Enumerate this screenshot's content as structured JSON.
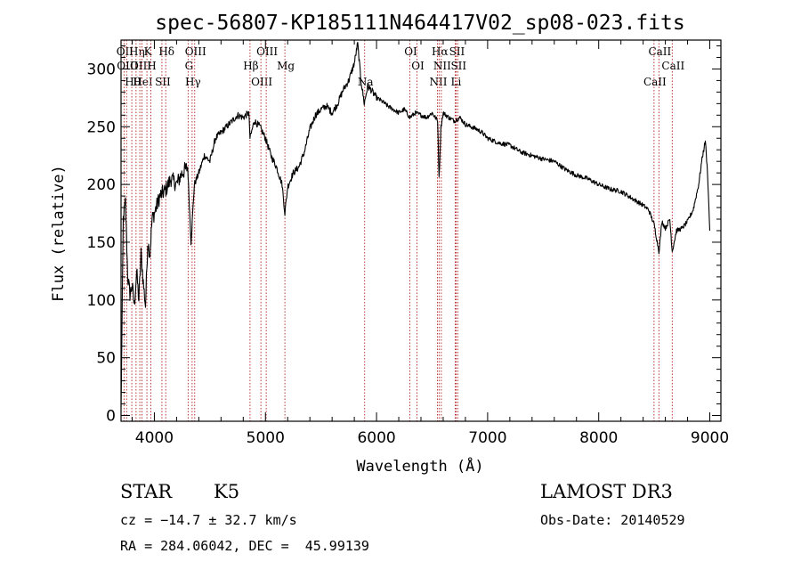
{
  "chart_data": {
    "type": "line",
    "title": "spec-56807-KP185111N464417V02_sp08-023.fits",
    "xlabel": "Wavelength (Å)",
    "ylabel": "Flux (relative)",
    "xlim": [
      3700,
      9100
    ],
    "ylim": [
      -5,
      325
    ],
    "xticks": [
      4000,
      5000,
      6000,
      7000,
      8000,
      9000
    ],
    "yticks": [
      0,
      50,
      100,
      150,
      200,
      250,
      300
    ],
    "grid": false,
    "line_color": "#000000",
    "marker_color": "#b22222",
    "series": [
      {
        "values_x": [
          3700,
          3720,
          3740,
          3760,
          3780,
          3800,
          3820,
          3840,
          3860,
          3880,
          3900,
          3920,
          3940,
          3960,
          3980,
          4000,
          4050,
          4100,
          4150,
          4200,
          4250,
          4300,
          4330,
          4360,
          4400,
          4450,
          4500,
          4550,
          4600,
          4650,
          4700,
          4750,
          4800,
          4850,
          4861,
          4900,
          4950,
          5000,
          5050,
          5100,
          5150,
          5175,
          5200,
          5250,
          5300,
          5350,
          5400,
          5450,
          5500,
          5550,
          5600,
          5650,
          5700,
          5750,
          5800,
          5830,
          5860,
          5890,
          5920,
          5950,
          6000,
          6050,
          6100,
          6150,
          6200,
          6250,
          6300,
          6350,
          6400,
          6450,
          6500,
          6550,
          6563,
          6580,
          6600,
          6650,
          6700,
          6750,
          6800,
          6850,
          6900,
          6950,
          7000,
          7100,
          7200,
          7300,
          7400,
          7500,
          7600,
          7700,
          7800,
          7900,
          8000,
          8100,
          8200,
          8300,
          8400,
          8450,
          8500,
          8542,
          8570,
          8600,
          8640,
          8662,
          8700,
          8750,
          8800,
          8850,
          8900,
          8930,
          8960,
          8980,
          9000
        ],
        "values_y": [
          5,
          170,
          185,
          120,
          105,
          112,
          95,
          125,
          100,
          140,
          115,
          95,
          150,
          140,
          170,
          175,
          190,
          195,
          205,
          200,
          210,
          215,
          150,
          200,
          210,
          225,
          220,
          240,
          245,
          250,
          255,
          260,
          258,
          262,
          240,
          255,
          250,
          240,
          225,
          215,
          200,
          175,
          198,
          210,
          215,
          228,
          248,
          260,
          265,
          268,
          262,
          270,
          282,
          290,
          305,
          322,
          290,
          270,
          285,
          282,
          275,
          272,
          268,
          265,
          262,
          265,
          258,
          262,
          260,
          258,
          262,
          255,
          205,
          250,
          262,
          258,
          255,
          258,
          252,
          250,
          248,
          245,
          240,
          236,
          234,
          228,
          225,
          222,
          220,
          213,
          208,
          205,
          200,
          196,
          194,
          188,
          182,
          178,
          165,
          142,
          168,
          162,
          170,
          142,
          160,
          162,
          168,
          178,
          200,
          222,
          238,
          210,
          160
        ]
      }
    ],
    "spectral_lines": [
      {
        "x": 3727,
        "label": "OII"
      },
      {
        "x": 3750,
        "label": "OIII"
      },
      {
        "x": 3797,
        "label": "Hθ"
      },
      {
        "x": 3835,
        "label": "Hη"
      },
      {
        "x": 3869,
        "label": "OIII"
      },
      {
        "x": 3889,
        "label": "HeI"
      },
      {
        "x": 3933,
        "label": "K"
      },
      {
        "x": 3968,
        "label": "H"
      },
      {
        "x": 4068,
        "label": "SII"
      },
      {
        "x": 4102,
        "label": "Hδ"
      },
      {
        "x": 4304,
        "label": "G"
      },
      {
        "x": 4340,
        "label": "Hγ"
      },
      {
        "x": 4363,
        "label": "OIII"
      },
      {
        "x": 4861,
        "label": "Hβ"
      },
      {
        "x": 4959,
        "label": "OIII"
      },
      {
        "x": 5007,
        "label": "OIII"
      },
      {
        "x": 5175,
        "label": "Mg"
      },
      {
        "x": 5893,
        "label": "Na"
      },
      {
        "x": 6300,
        "label": "OI"
      },
      {
        "x": 6364,
        "label": "OI"
      },
      {
        "x": 6548,
        "label": "NII"
      },
      {
        "x": 6563,
        "label": "Hα"
      },
      {
        "x": 6583,
        "label": "NII"
      },
      {
        "x": 6708,
        "label": "Li"
      },
      {
        "x": 6716,
        "label": "SII"
      },
      {
        "x": 6731,
        "label": "SII"
      },
      {
        "x": 8498,
        "label": "CaII"
      },
      {
        "x": 8542,
        "label": "CaII"
      },
      {
        "x": 8662,
        "label": "CaII"
      }
    ]
  },
  "info": {
    "object_type": "STAR",
    "subclass": "K5",
    "survey": "LAMOST DR3",
    "cz": "cz = −14.7 ± 32.7 km/s",
    "obs_date": "Obs-Date: 20140529",
    "coords": "RA = 284.06042, DEC =  45.99139"
  }
}
